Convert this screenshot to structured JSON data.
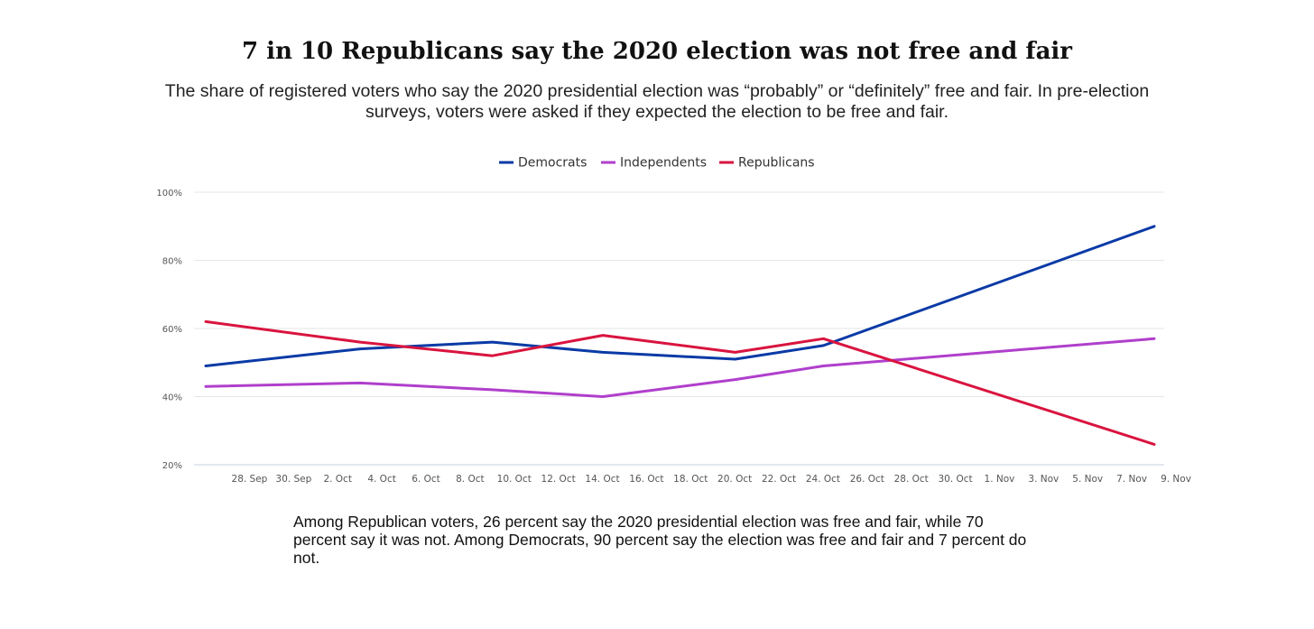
{
  "title": "7 in 10 Republicans say the 2020 election was not free and fair",
  "subtitle": "The share of registered voters who say the 2020 presidential election was “probably” or “definitely” free and fair. In pre-election surveys, voters were asked if they expected the election to be free and fair.",
  "note": "Among Republican voters, 26 percent say the 2020 presidential election was free and fair, while 70 percent say it was not. Among Democrats, 90 percent say the election was free and fair and 7 percent do not.",
  "chart_data": {
    "type": "line",
    "x_ticks": [
      "28. Sep",
      "30. Sep",
      "2. Oct",
      "4. Oct",
      "6. Oct",
      "8. Oct",
      "10. Oct",
      "12. Oct",
      "14. Oct",
      "16. Oct",
      "18. Oct",
      "20. Oct",
      "22. Oct",
      "24. Oct",
      "26. Oct",
      "28. Oct",
      "30. Oct",
      "1. Nov",
      "3. Nov",
      "5. Nov",
      "7. Nov",
      "9. Nov"
    ],
    "y_ticks": [
      "20%",
      "40%",
      "60%",
      "80%",
      "100%"
    ],
    "ylim": [
      20,
      100
    ],
    "grid": true,
    "legend_position": "top-center",
    "series": [
      {
        "name": "Democrats",
        "color": "#0a3aa6",
        "points": [
          {
            "x": "2020-09-27",
            "y": 49
          },
          {
            "x": "2020-10-04",
            "y": 54
          },
          {
            "x": "2020-10-10",
            "y": 56
          },
          {
            "x": "2020-10-15",
            "y": 53
          },
          {
            "x": "2020-10-21",
            "y": 51
          },
          {
            "x": "2020-10-25",
            "y": 55
          },
          {
            "x": "2020-11-09",
            "y": 90
          }
        ]
      },
      {
        "name": "Independents",
        "color": "#b03fcc",
        "points": [
          {
            "x": "2020-09-27",
            "y": 43
          },
          {
            "x": "2020-10-04",
            "y": 44
          },
          {
            "x": "2020-10-10",
            "y": 42
          },
          {
            "x": "2020-10-15",
            "y": 40
          },
          {
            "x": "2020-10-21",
            "y": 45
          },
          {
            "x": "2020-10-25",
            "y": 49
          },
          {
            "x": "2020-11-09",
            "y": 57
          }
        ]
      },
      {
        "name": "Republicans",
        "color": "#d9143f",
        "points": [
          {
            "x": "2020-09-27",
            "y": 62
          },
          {
            "x": "2020-10-04",
            "y": 56
          },
          {
            "x": "2020-10-10",
            "y": 52
          },
          {
            "x": "2020-10-15",
            "y": 58
          },
          {
            "x": "2020-10-21",
            "y": 53
          },
          {
            "x": "2020-10-25",
            "y": 57
          },
          {
            "x": "2020-11-09",
            "y": 26
          }
        ]
      }
    ]
  }
}
